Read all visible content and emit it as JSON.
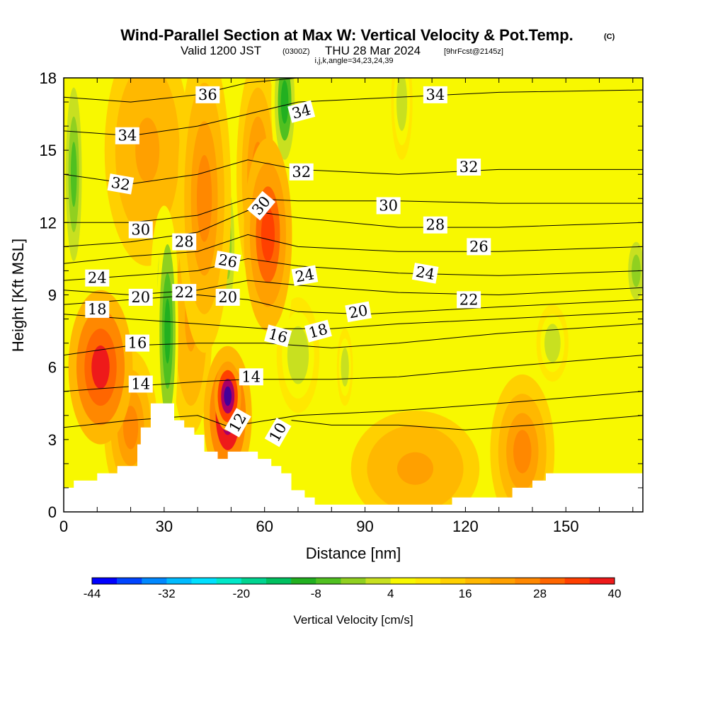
{
  "chart_data": {
    "type": "heatmap",
    "title": "Wind-Parallel Section at Max W: Vertical Velocity & Pot.Temp.",
    "title_suffix": "(C)",
    "subtitle_valid": "Valid 1200 JST",
    "subtitle_utc": "(0300Z)",
    "subtitle_date": "THU 28 Mar 2024",
    "subtitle_fcst": "[9hrFcst@2145z]",
    "subtitle_indices": "i,j,k,angle=34,23,24,39",
    "xlabel": "Distance [nm]",
    "ylabel": "Height [Kft MSL]",
    "xlim": [
      0,
      173
    ],
    "ylim": [
      0,
      18
    ],
    "x_ticks": [
      0,
      30,
      60,
      90,
      120,
      150
    ],
    "y_ticks": [
      0,
      3,
      6,
      9,
      12,
      15,
      18
    ],
    "colorbar": {
      "label": "Vertical Velocity [cm/s]",
      "min": -44,
      "max": 40,
      "step": 4,
      "tick_labels": [
        "-44",
        "-32",
        "-20",
        "-8",
        "4",
        "16",
        "28",
        "40"
      ],
      "colors": [
        "#0000ff",
        "#0044ff",
        "#0088ff",
        "#00bbff",
        "#00e0ff",
        "#00e8c8",
        "#00d490",
        "#00c060",
        "#22b020",
        "#50c020",
        "#90d020",
        "#c8e020",
        "#f8f800",
        "#ffe800",
        "#ffd000",
        "#ffb800",
        "#ffa000",
        "#ff8800",
        "#ff6600",
        "#ff4000",
        "#ee1a1a",
        "#cc0033",
        "#aa0066",
        "#880099",
        "#6600aa",
        "#440099"
      ]
    },
    "terrain_profile": [
      {
        "x": 0,
        "z": 1.0
      },
      {
        "x": 3,
        "z": 1.0
      },
      {
        "x": 3,
        "z": 1.3
      },
      {
        "x": 10,
        "z": 1.3
      },
      {
        "x": 10,
        "z": 1.6
      },
      {
        "x": 16,
        "z": 1.6
      },
      {
        "x": 16,
        "z": 1.9
      },
      {
        "x": 22,
        "z": 1.9
      },
      {
        "x": 22,
        "z": 2.8
      },
      {
        "x": 23,
        "z": 2.8
      },
      {
        "x": 23,
        "z": 3.5
      },
      {
        "x": 26,
        "z": 3.5
      },
      {
        "x": 26,
        "z": 4.5
      },
      {
        "x": 33,
        "z": 4.5
      },
      {
        "x": 33,
        "z": 3.8
      },
      {
        "x": 36,
        "z": 3.8
      },
      {
        "x": 36,
        "z": 3.5
      },
      {
        "x": 39,
        "z": 3.5
      },
      {
        "x": 39,
        "z": 3.2
      },
      {
        "x": 42,
        "z": 3.2
      },
      {
        "x": 42,
        "z": 2.5
      },
      {
        "x": 46,
        "z": 2.5
      },
      {
        "x": 46,
        "z": 2.2
      },
      {
        "x": 49,
        "z": 2.2
      },
      {
        "x": 49,
        "z": 2.5
      },
      {
        "x": 58,
        "z": 2.5
      },
      {
        "x": 58,
        "z": 2.2
      },
      {
        "x": 62,
        "z": 2.2
      },
      {
        "x": 62,
        "z": 1.9
      },
      {
        "x": 65,
        "z": 1.9
      },
      {
        "x": 65,
        "z": 1.6
      },
      {
        "x": 68,
        "z": 1.6
      },
      {
        "x": 68,
        "z": 0.9
      },
      {
        "x": 72,
        "z": 0.9
      },
      {
        "x": 72,
        "z": 0.6
      },
      {
        "x": 75,
        "z": 0.6
      },
      {
        "x": 75,
        "z": 0.3
      },
      {
        "x": 116,
        "z": 0.3
      },
      {
        "x": 116,
        "z": 0.6
      },
      {
        "x": 134,
        "z": 0.6
      },
      {
        "x": 134,
        "z": 1.0
      },
      {
        "x": 140,
        "z": 1.0
      },
      {
        "x": 140,
        "z": 1.3
      },
      {
        "x": 144,
        "z": 1.3
      },
      {
        "x": 144,
        "z": 1.6
      },
      {
        "x": 173,
        "z": 1.6
      }
    ],
    "vertical_velocity_features": [
      {
        "kind": "updraft",
        "x": 49,
        "z": 4.8,
        "value": 40,
        "sx": 2.5,
        "sz": 0.9
      },
      {
        "kind": "updraft",
        "x": 49,
        "z": 4.0,
        "value": 28,
        "sx": 4.5,
        "sz": 1.8
      },
      {
        "kind": "updraft",
        "x": 11,
        "z": 6.0,
        "value": 22,
        "sx": 6.0,
        "sz": 2.0
      },
      {
        "kind": "updraft",
        "x": 20,
        "z": 3.5,
        "value": 14,
        "sx": 5.0,
        "sz": 2.0
      },
      {
        "kind": "updraft",
        "x": 61,
        "z": 11.5,
        "value": 20,
        "sx": 4.5,
        "sz": 2.5
      },
      {
        "kind": "updraft",
        "x": 58,
        "z": 14.0,
        "value": 14,
        "sx": 4.0,
        "sz": 3.0
      },
      {
        "kind": "updraft",
        "x": 42,
        "z": 13.0,
        "value": 12,
        "sx": 5.0,
        "sz": 4.0
      },
      {
        "kind": "updraft",
        "x": 38,
        "z": 8.0,
        "value": 10,
        "sx": 4.0,
        "sz": 3.0
      },
      {
        "kind": "updraft",
        "x": 25,
        "z": 15.0,
        "value": 10,
        "sx": 8.0,
        "sz": 3.0
      },
      {
        "kind": "updraft",
        "x": 137,
        "z": 2.5,
        "value": 14,
        "sx": 6.0,
        "sz": 2.0
      },
      {
        "kind": "updraft",
        "x": 105,
        "z": 1.8,
        "value": 9,
        "sx": 12.0,
        "sz": 1.5
      },
      {
        "kind": "downdraft",
        "x": 31,
        "z": 7.5,
        "value": -18,
        "sx": 2.0,
        "sz": 3.0
      },
      {
        "kind": "downdraft",
        "x": 30,
        "z": 9.5,
        "value": -10,
        "sx": 2.5,
        "sz": 2.0
      },
      {
        "kind": "downdraft",
        "x": 49,
        "z": 11.0,
        "value": -10,
        "sx": 2.5,
        "sz": 3.0
      },
      {
        "kind": "downdraft",
        "x": 66,
        "z": 17.0,
        "value": -16,
        "sx": 2.5,
        "sz": 2.0
      },
      {
        "kind": "downdraft",
        "x": 60,
        "z": 9.0,
        "value": -10,
        "sx": 5.0,
        "sz": 1.5
      },
      {
        "kind": "downdraft",
        "x": 70,
        "z": 6.5,
        "value": -8,
        "sx": 4.0,
        "sz": 1.5
      },
      {
        "kind": "downdraft",
        "x": 3,
        "z": 14.0,
        "value": -12,
        "sx": 2.0,
        "sz": 3.0
      },
      {
        "kind": "downdraft",
        "x": 101,
        "z": 17.0,
        "value": -8,
        "sx": 2.0,
        "sz": 1.5
      },
      {
        "kind": "downdraft",
        "x": 84,
        "z": 6.0,
        "value": -8,
        "sx": 1.5,
        "sz": 1.0
      },
      {
        "kind": "downdraft",
        "x": 146,
        "z": 7.0,
        "value": -8,
        "sx": 3.0,
        "sz": 1.0
      },
      {
        "kind": "downdraft",
        "x": 171,
        "z": 10.0,
        "value": -9,
        "sx": 3.0,
        "sz": 1.5
      }
    ],
    "pot_temp_contours": [
      {
        "value": 10,
        "label": "10",
        "points": [
          [
            68,
            3.8
          ],
          [
            80,
            3.6
          ],
          [
            100,
            3.6
          ],
          [
            120,
            3.4
          ],
          [
            140,
            3.6
          ],
          [
            173,
            4.0
          ]
        ],
        "label_at": [
          64,
          3.3
        ],
        "label_angle": -60
      },
      {
        "value": 12,
        "label": "12",
        "points": [
          [
            0,
            3.5
          ],
          [
            20,
            3.8
          ],
          [
            40,
            4.0
          ],
          [
            50,
            3.5
          ],
          [
            52,
            3.6
          ],
          [
            70,
            4.0
          ],
          [
            100,
            4.2
          ],
          [
            130,
            4.5
          ],
          [
            173,
            5.0
          ]
        ],
        "label_at": [
          52,
          3.7
        ],
        "label_angle": -60
      },
      {
        "value": 14,
        "label": "14",
        "points": [
          [
            0,
            5.0
          ],
          [
            20,
            5.2
          ],
          [
            40,
            5.4
          ],
          [
            55,
            5.5
          ],
          [
            80,
            5.5
          ],
          [
            100,
            5.6
          ],
          [
            130,
            6.0
          ],
          [
            173,
            6.5
          ]
        ],
        "label_at": [
          56,
          5.6
        ],
        "label_angle": 0
      },
      {
        "value": 16,
        "label": "16",
        "points": [
          [
            0,
            6.5
          ],
          [
            20,
            6.9
          ],
          [
            40,
            7.0
          ],
          [
            60,
            7.0
          ],
          [
            80,
            6.8
          ],
          [
            100,
            7.0
          ],
          [
            130,
            7.4
          ],
          [
            173,
            7.8
          ]
        ],
        "label_at": [
          64,
          7.3
        ],
        "label_angle": 15
      },
      {
        "value": 18,
        "label": "18",
        "points": [
          [
            0,
            8.2
          ],
          [
            20,
            8.0
          ],
          [
            40,
            7.8
          ],
          [
            60,
            7.6
          ],
          [
            80,
            7.6
          ],
          [
            100,
            7.8
          ],
          [
            130,
            8.0
          ],
          [
            173,
            8.3
          ]
        ],
        "label_at": [
          76,
          7.5
        ],
        "label_angle": -15
      },
      {
        "value": 20,
        "label": "20",
        "points": [
          [
            0,
            8.6
          ],
          [
            20,
            8.8
          ],
          [
            40,
            9.0
          ],
          [
            55,
            8.8
          ],
          [
            70,
            8.3
          ],
          [
            90,
            8.2
          ],
          [
            130,
            8.5
          ],
          [
            173,
            8.8
          ]
        ],
        "label_at": [
          88,
          8.3
        ],
        "label_angle": -10
      },
      {
        "value": 22,
        "label": "22",
        "points": [
          [
            0,
            9.2
          ],
          [
            20,
            9.0
          ],
          [
            40,
            9.2
          ],
          [
            55,
            9.6
          ],
          [
            70,
            9.4
          ],
          [
            100,
            9.1
          ],
          [
            130,
            9.0
          ],
          [
            173,
            9.3
          ]
        ],
        "label_at": [
          121,
          8.8
        ],
        "label_angle": 0
      },
      {
        "value": 24,
        "label": "24",
        "points": [
          [
            0,
            9.6
          ],
          [
            20,
            9.8
          ],
          [
            40,
            10.0
          ],
          [
            55,
            10.5
          ],
          [
            70,
            10.2
          ],
          [
            100,
            9.9
          ],
          [
            130,
            9.8
          ],
          [
            173,
            10.0
          ]
        ],
        "label_at": [
          108,
          9.9
        ],
        "label_angle": 10
      },
      {
        "value": 26,
        "label": "26",
        "points": [
          [
            0,
            10.3
          ],
          [
            20,
            10.6
          ],
          [
            40,
            10.8
          ],
          [
            55,
            11.5
          ],
          [
            70,
            11.0
          ],
          [
            100,
            10.8
          ],
          [
            130,
            10.8
          ],
          [
            173,
            11.0
          ]
        ],
        "label_at": [
          124,
          11.0
        ],
        "label_angle": 0
      },
      {
        "value": 28,
        "label": "28",
        "points": [
          [
            0,
            11.0
          ],
          [
            20,
            11.2
          ],
          [
            40,
            11.6
          ],
          [
            55,
            12.5
          ],
          [
            70,
            12.2
          ],
          [
            100,
            11.8
          ],
          [
            130,
            11.8
          ],
          [
            173,
            12.0
          ]
        ],
        "label_at": [
          111,
          11.9
        ],
        "label_angle": 0
      },
      {
        "value": 30,
        "label": "30",
        "points": [
          [
            0,
            12.0
          ],
          [
            20,
            12.0
          ],
          [
            40,
            12.3
          ],
          [
            55,
            13.0
          ],
          [
            70,
            12.9
          ],
          [
            100,
            12.9
          ],
          [
            130,
            12.8
          ],
          [
            173,
            12.8
          ]
        ],
        "label_at": [
          97,
          12.7
        ],
        "label_angle": 0
      },
      {
        "value": 32,
        "label": "32",
        "points": [
          [
            0,
            14.0
          ],
          [
            20,
            13.6
          ],
          [
            40,
            14.0
          ],
          [
            55,
            14.6
          ],
          [
            70,
            14.2
          ],
          [
            100,
            14.0
          ],
          [
            130,
            14.2
          ],
          [
            173,
            14.2
          ]
        ],
        "label_at": [
          121,
          14.3
        ],
        "label_angle": 0
      },
      {
        "value": 34,
        "label": "34",
        "points": [
          [
            0,
            15.8
          ],
          [
            20,
            15.6
          ],
          [
            40,
            16.0
          ],
          [
            55,
            16.5
          ],
          [
            70,
            17.0
          ],
          [
            100,
            17.2
          ],
          [
            130,
            17.4
          ],
          [
            173,
            17.5
          ]
        ],
        "label_at": [
          111,
          17.3
        ],
        "label_angle": 0
      },
      {
        "value": 36,
        "label": "36",
        "points": [
          [
            0,
            17.2
          ],
          [
            20,
            17.0
          ],
          [
            40,
            17.3
          ],
          [
            55,
            17.8
          ],
          [
            70,
            18.0
          ]
        ],
        "label_at": [
          43,
          17.3
        ],
        "label_angle": 0
      }
    ],
    "extra_contour_labels": [
      {
        "label": "14",
        "x": 23,
        "z": 5.3,
        "angle": 0
      },
      {
        "label": "16",
        "x": 22,
        "z": 7.0,
        "angle": 0
      },
      {
        "label": "18",
        "x": 10,
        "z": 8.4,
        "angle": 0
      },
      {
        "label": "20",
        "x": 23,
        "z": 8.9,
        "angle": 0
      },
      {
        "label": "22",
        "x": 36,
        "z": 9.1,
        "angle": 0
      },
      {
        "label": "20",
        "x": 49,
        "z": 8.9,
        "angle": 0
      },
      {
        "label": "24",
        "x": 10,
        "z": 9.7,
        "angle": 0
      },
      {
        "label": "26",
        "x": 49,
        "z": 10.4,
        "angle": 10
      },
      {
        "label": "28",
        "x": 36,
        "z": 11.2,
        "angle": 0
      },
      {
        "label": "30",
        "x": 23,
        "z": 11.7,
        "angle": 0
      },
      {
        "label": "30",
        "x": 59,
        "z": 12.7,
        "angle": -50
      },
      {
        "label": "24",
        "x": 72,
        "z": 9.8,
        "angle": -10
      },
      {
        "label": "32",
        "x": 17,
        "z": 13.6,
        "angle": 10
      },
      {
        "label": "32",
        "x": 71,
        "z": 14.1,
        "angle": 0
      },
      {
        "label": "34",
        "x": 19,
        "z": 15.6,
        "angle": 0
      },
      {
        "label": "34",
        "x": 71,
        "z": 16.6,
        "angle": -15
      }
    ]
  }
}
